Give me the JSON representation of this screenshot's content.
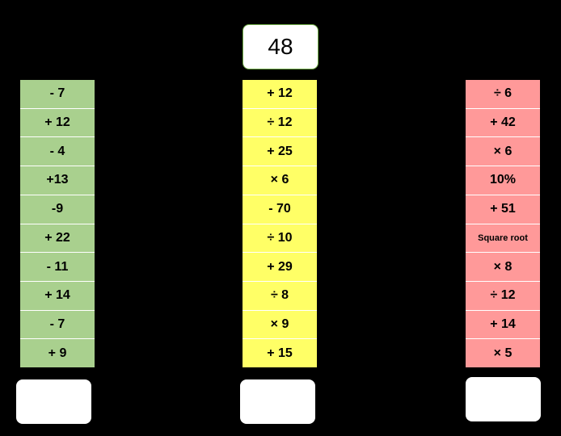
{
  "start": "48",
  "columns": [
    {
      "steps": [
        "- 7",
        "+ 12",
        "- 4",
        "+13",
        "-9",
        "+ 22",
        "- 11",
        "+ 14",
        "- 7",
        "+ 9"
      ]
    },
    {
      "steps": [
        "+ 12",
        "÷ 12",
        "+ 25",
        "× 6",
        "- 70",
        "÷ 10",
        "+ 29",
        "÷ 8",
        "× 9",
        "+ 15"
      ]
    },
    {
      "steps": [
        "÷ 6",
        "+ 42",
        "× 6",
        "10%",
        "+ 51",
        "Square root",
        "× 8",
        "÷ 12",
        "+ 14",
        "× 5"
      ]
    }
  ]
}
